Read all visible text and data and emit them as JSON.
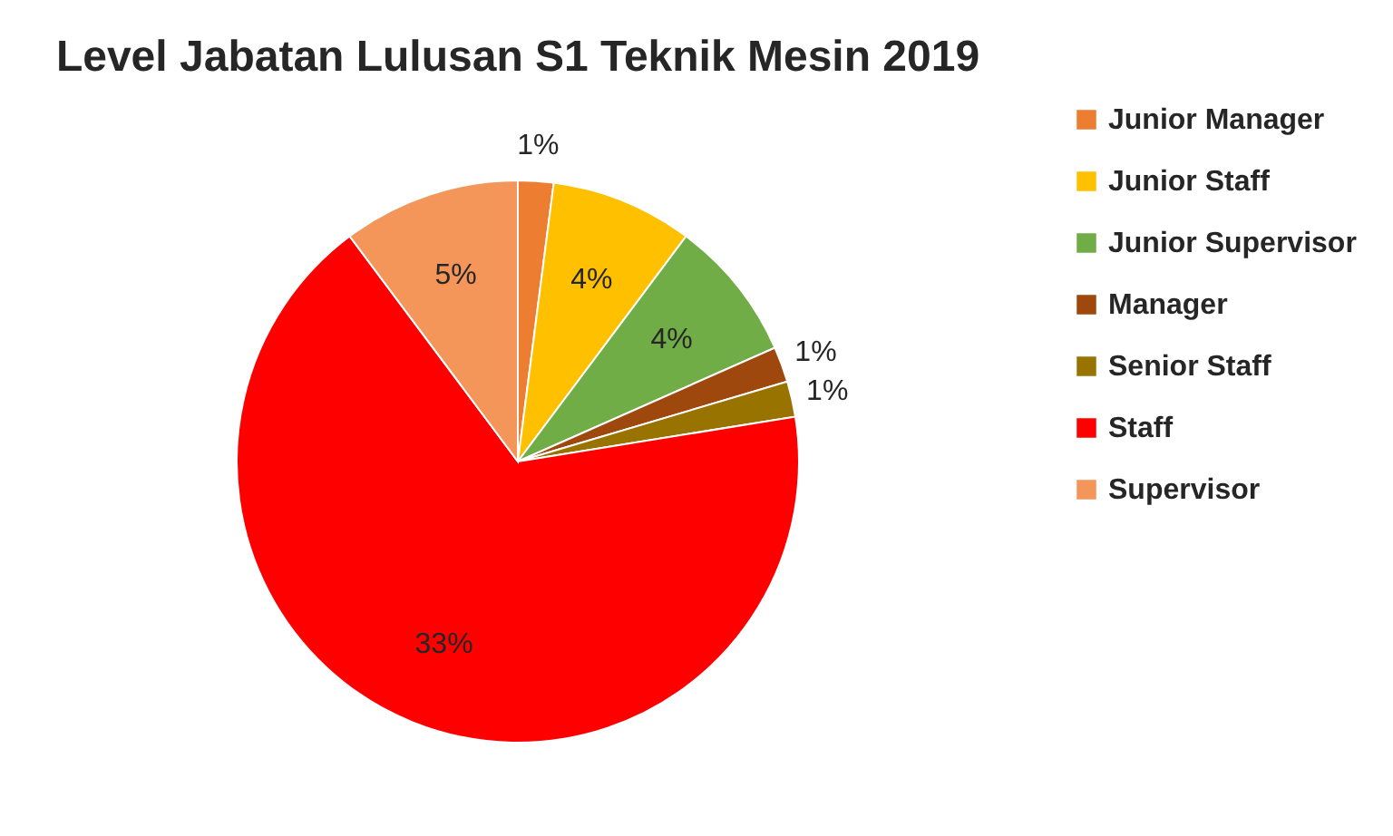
{
  "chart_data": {
    "type": "pie",
    "title": "Level Jabatan Lulusan S1 Teknik Mesin 2019",
    "categories": [
      "Junior Manager",
      "Junior Staff",
      "Junior Supervisor",
      "Manager",
      "Senior Staff",
      "Staff",
      "Supervisor"
    ],
    "values": [
      1,
      4,
      4,
      1,
      1,
      33,
      5
    ],
    "colors": [
      "#ed7d31",
      "#ffc000",
      "#70ad47",
      "#9e480e",
      "#997300",
      "#ff0000",
      "#f4965a"
    ],
    "value_labels": [
      "1%",
      "4%",
      "4%",
      "1%",
      "1%",
      "33%",
      "5%"
    ],
    "legend": "right"
  }
}
